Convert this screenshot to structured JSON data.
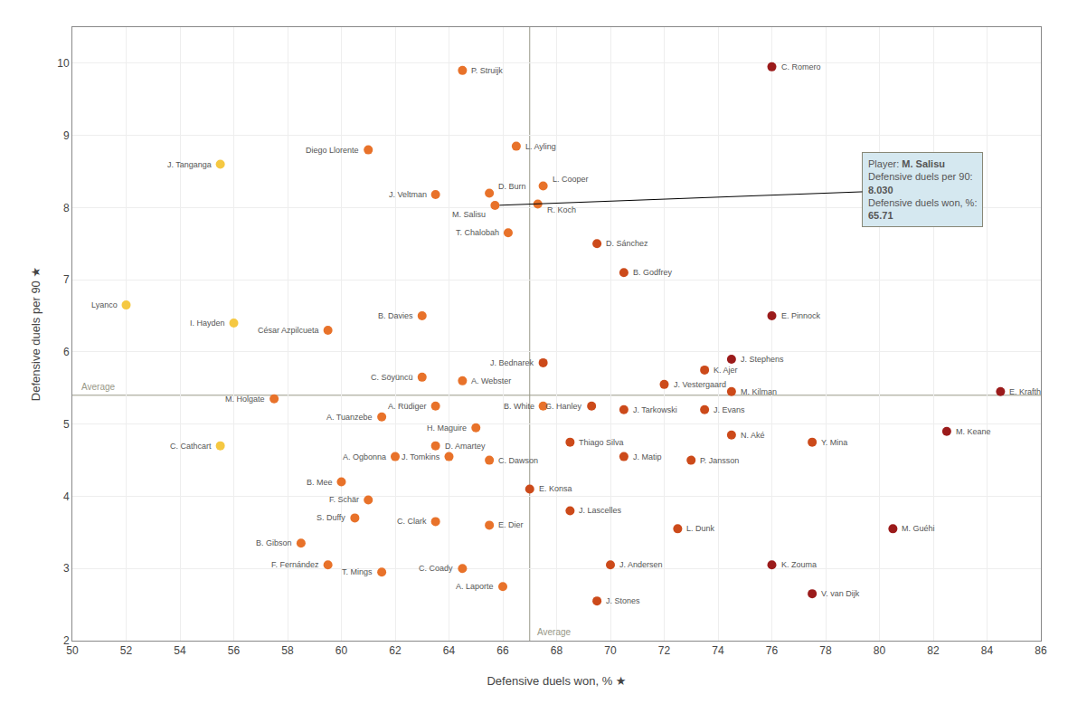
{
  "chart_data": {
    "type": "scatter",
    "xlabel": "Defensive duels won, % ★",
    "ylabel": "Defensive duels per 90 ★",
    "labels": [
      "C. Romero",
      "P. Struijk",
      "L. Ayling",
      "Diego Llorente",
      "J. Tanganga",
      "D. Burn",
      "J. Veltman",
      "L. Cooper",
      "R. Koch",
      "M. Salisu",
      "T. Chalobah",
      "D. Sánchez",
      "B. Godfrey",
      "Lyanco",
      "I. Hayden",
      "César Azpilcueta",
      "B. Davies",
      "E. Pinnock",
      "J. Bednarek",
      "J. Stephens",
      "C. Söyüncü",
      "A. Webster",
      "K. Ajer",
      "J. Vestergaard",
      "M. Kilman",
      "M. Holgate",
      "A. Rüdiger",
      "B. White",
      "G. Hanley",
      "J. Tarkowski",
      "J. Evans",
      "E. Krafth",
      "A. Tuanzebe",
      "H. Maguire",
      "Thiago Silva",
      "N. Aké",
      "Y. Mina",
      "M. Keane",
      "C. Cathcart",
      "D. Amartey",
      "A. Ogbonna",
      "J. Tomkins",
      "C. Dawson",
      "J. Matip",
      "P. Jansson",
      "B. Mee",
      "E. Konsa",
      "F. Schär",
      "J. Lascelles",
      "S. Duffy",
      "C. Clark",
      "E. Dier",
      "L. Dunk",
      "M. Guéhi",
      "B. Gibson",
      "F. Fernández",
      "C. Coady",
      "J. Andersen",
      "K. Zouma",
      "T. Mings",
      "A. Laporte",
      "J. Stones",
      "V. van Dijk"
    ],
    "x": [
      76.0,
      64.5,
      66.5,
      61.0,
      55.5,
      65.5,
      63.5,
      67.5,
      67.3,
      65.71,
      66.2,
      69.5,
      70.5,
      52.0,
      56.0,
      59.5,
      63.0,
      76.0,
      67.5,
      74.5,
      63.0,
      64.5,
      73.5,
      72.0,
      74.5,
      57.5,
      63.5,
      67.5,
      69.3,
      70.5,
      73.5,
      84.5,
      61.5,
      65.0,
      68.5,
      74.5,
      77.5,
      82.5,
      55.5,
      63.5,
      62.0,
      64.0,
      65.5,
      70.5,
      73.0,
      60.0,
      67.0,
      61.0,
      68.5,
      60.5,
      63.5,
      65.5,
      72.5,
      80.5,
      58.5,
      59.5,
      64.5,
      70.0,
      76.0,
      61.5,
      66.0,
      69.5,
      77.5
    ],
    "values": [
      9.95,
      9.9,
      8.85,
      8.8,
      8.6,
      8.2,
      8.18,
      8.3,
      8.05,
      8.03,
      7.65,
      7.5,
      7.1,
      6.65,
      6.4,
      6.3,
      6.5,
      6.5,
      5.85,
      5.9,
      5.65,
      5.6,
      5.75,
      5.55,
      5.45,
      5.35,
      5.25,
      5.25,
      5.25,
      5.2,
      5.2,
      5.45,
      5.1,
      4.95,
      4.75,
      4.85,
      4.75,
      4.9,
      4.7,
      4.7,
      4.55,
      4.55,
      4.5,
      4.55,
      4.5,
      4.2,
      4.1,
      3.95,
      3.8,
      3.7,
      3.65,
      3.6,
      3.55,
      3.55,
      3.35,
      3.05,
      3.0,
      3.05,
      3.05,
      2.95,
      2.75,
      2.55,
      2.65
    ],
    "colors": [
      "#9B1B1B",
      "#E8722A",
      "#E8722A",
      "#E8722A",
      "#F5C842",
      "#E8722A",
      "#E8722A",
      "#E8722A",
      "#E8722A",
      "#E8722A",
      "#E8722A",
      "#CC4A1A",
      "#CC4A1A",
      "#F5C842",
      "#F5C842",
      "#E8722A",
      "#E8722A",
      "#9B1B1B",
      "#CC4A1A",
      "#9B1B1B",
      "#E8722A",
      "#E8722A",
      "#CC4A1A",
      "#CC4A1A",
      "#CC4A1A",
      "#E8722A",
      "#E8722A",
      "#E8722A",
      "#CC4A1A",
      "#CC4A1A",
      "#CC4A1A",
      "#9B1B1B",
      "#E8722A",
      "#E8722A",
      "#CC4A1A",
      "#CC4A1A",
      "#CC4A1A",
      "#9B1B1B",
      "#F5C842",
      "#E8722A",
      "#E8722A",
      "#E8722A",
      "#E8722A",
      "#CC4A1A",
      "#CC4A1A",
      "#E8722A",
      "#CC4A1A",
      "#E8722A",
      "#CC4A1A",
      "#E8722A",
      "#E8722A",
      "#E8722A",
      "#CC4A1A",
      "#9B1B1B",
      "#E8722A",
      "#E8722A",
      "#E8722A",
      "#CC4A1A",
      "#9B1B1B",
      "#E8722A",
      "#E8722A",
      "#CC4A1A",
      "#9B1B1B"
    ],
    "average_x": 67.0,
    "average_y": 5.4,
    "average_label": "Average",
    "annotation": {
      "target": "M. Salisu",
      "texts": [
        "Player: ",
        "M. Salisu",
        "Defensive duels per 90:",
        "8.030",
        "Defensive duels won, %:",
        "65.71"
      ]
    },
    "xlim": [
      50,
      86
    ],
    "ylim": [
      2,
      10.5
    ],
    "xticks": [
      50,
      52,
      54,
      56,
      58,
      60,
      62,
      64,
      66,
      68,
      70,
      72,
      74,
      76,
      78,
      80,
      82,
      84,
      86
    ],
    "yticks": [
      2,
      3,
      4,
      5,
      6,
      7,
      8,
      9,
      10
    ],
    "grid": true
  }
}
